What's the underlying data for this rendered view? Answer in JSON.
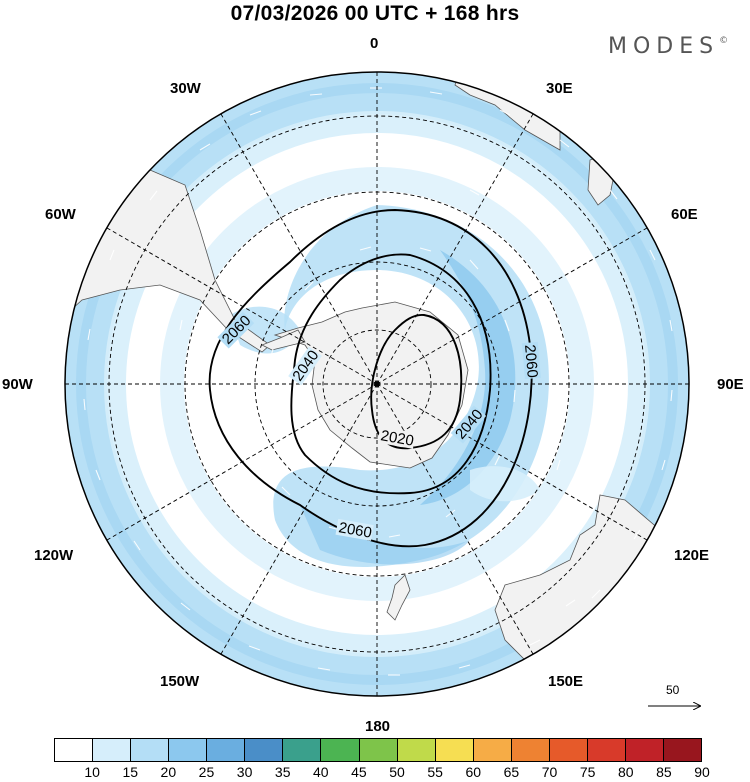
{
  "title": "07/03/2026  00 UTC  + 168 hrs",
  "brand": {
    "text": "MODES",
    "mark": "©"
  },
  "longitude_labels": [
    "0",
    "30E",
    "60E",
    "90E",
    "120E",
    "150E",
    "180",
    "150W",
    "120W",
    "90W",
    "60W",
    "30W"
  ],
  "contour_labels": [
    "2060",
    "2040",
    "2020",
    "2060",
    "2040",
    "2060"
  ],
  "reference_vector": {
    "value": "50"
  },
  "colorbar": {
    "ticks": [
      "10",
      "15",
      "20",
      "25",
      "30",
      "35",
      "40",
      "45",
      "50",
      "55",
      "60",
      "65",
      "70",
      "75",
      "80",
      "85",
      "90"
    ],
    "colors": [
      "#ffffff",
      "#d6eefb",
      "#b4def6",
      "#8cc8ee",
      "#6aaee0",
      "#4a8ec8",
      "#3aa08c",
      "#4cb452",
      "#7ec44a",
      "#c0da4a",
      "#f6de52",
      "#f6ac46",
      "#ee8232",
      "#e65a2a",
      "#d83a2a",
      "#c02228",
      "#98161e"
    ]
  },
  "colors": {
    "land": "#f2f2f2",
    "shade_light": "#d6eefb",
    "shade_mid": "#b4def6",
    "shade_dark": "#8cc8ee",
    "contour": "#000000"
  }
}
